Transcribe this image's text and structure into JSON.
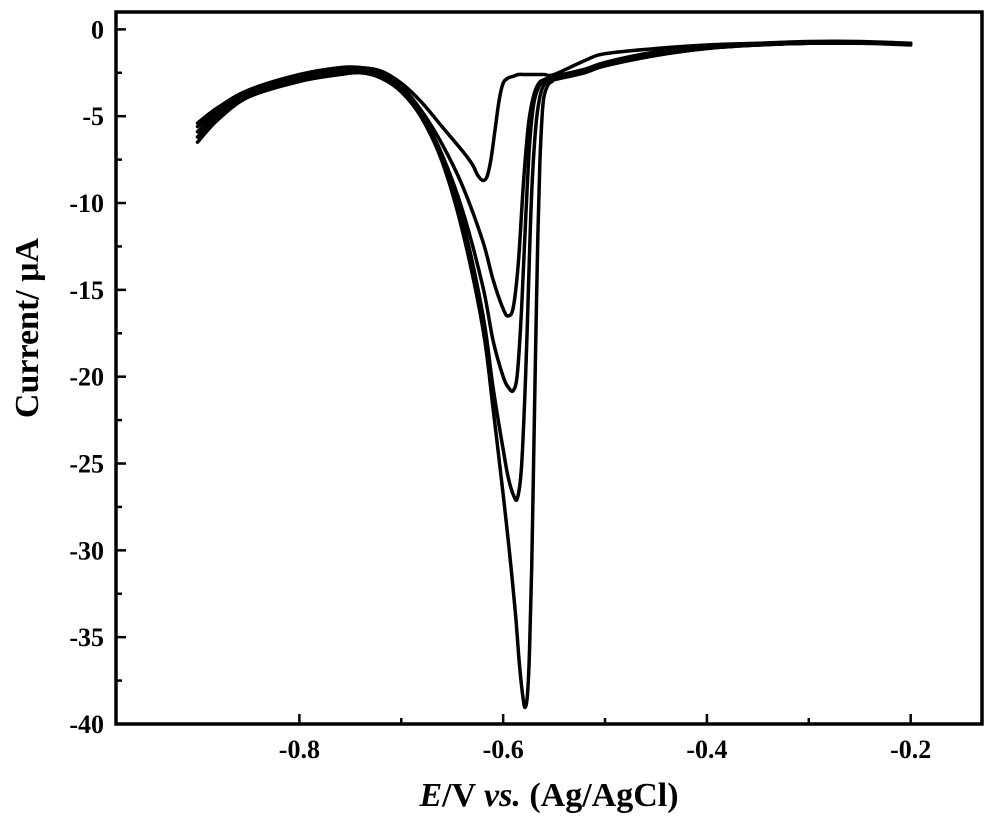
{
  "chart_data": {
    "type": "line",
    "xlabel": "E/V vs. (Ag/AgCl)",
    "xlabel_parts": {
      "e": "E",
      "v": "/V ",
      "vs": "vs.",
      "ref": " (Ag/AgCl)"
    },
    "ylabel": "Current/ μA",
    "xlim": [
      -0.98,
      -0.13
    ],
    "ylim": [
      -40,
      1
    ],
    "xticks": [
      -0.8,
      -0.6,
      -0.4,
      -0.2
    ],
    "xtick_labels": [
      "-0.8",
      "-0.6",
      "-0.4",
      "-0.2"
    ],
    "yticks": [
      0,
      -5,
      -10,
      -15,
      -20,
      -25,
      -30,
      -35,
      -40
    ],
    "ytick_labels": [
      "0",
      "-5",
      "-10",
      "-15",
      "-20",
      "-25",
      "-30",
      "-35",
      "-40"
    ],
    "grid": false,
    "legend": "none",
    "line_color": "#000000",
    "series": [
      {
        "x": [
          -0.9,
          -0.88,
          -0.85,
          -0.8,
          -0.76,
          -0.74,
          -0.72,
          -0.7,
          -0.68,
          -0.66,
          -0.64,
          -0.63,
          -0.625,
          -0.62,
          -0.616,
          -0.612,
          -0.608,
          -0.604,
          -0.6,
          -0.595,
          -0.59,
          -0.585,
          -0.58,
          -0.57,
          -0.56,
          -0.55,
          -0.52,
          -0.5,
          -0.45,
          -0.4,
          -0.35,
          -0.3,
          -0.25,
          -0.2
        ],
        "y": [
          -5.4,
          -4.5,
          -3.5,
          -2.6,
          -2.2,
          -2.2,
          -2.4,
          -3.1,
          -4.2,
          -5.6,
          -7.0,
          -7.8,
          -8.4,
          -8.7,
          -8.5,
          -7.5,
          -5.8,
          -4.1,
          -3.1,
          -2.8,
          -2.7,
          -2.6,
          -2.6,
          -2.6,
          -2.6,
          -2.6,
          -1.8,
          -1.4,
          -1.1,
          -0.9,
          -0.8,
          -0.7,
          -0.7,
          -0.8
        ]
      },
      {
        "x": [
          -0.9,
          -0.88,
          -0.85,
          -0.8,
          -0.76,
          -0.74,
          -0.72,
          -0.7,
          -0.68,
          -0.66,
          -0.64,
          -0.62,
          -0.61,
          -0.6,
          -0.595,
          -0.59,
          -0.585,
          -0.58,
          -0.575,
          -0.57,
          -0.565,
          -0.56,
          -0.555,
          -0.55,
          -0.52,
          -0.5,
          -0.45,
          -0.4,
          -0.35,
          -0.3,
          -0.25,
          -0.2
        ],
        "y": [
          -5.6,
          -4.6,
          -3.6,
          -2.7,
          -2.3,
          -2.2,
          -2.5,
          -3.3,
          -4.7,
          -6.6,
          -9.0,
          -12.2,
          -14.4,
          -16.1,
          -16.5,
          -16.0,
          -13.4,
          -8.8,
          -5.4,
          -3.8,
          -3.1,
          -2.9,
          -2.8,
          -2.7,
          -2.3,
          -1.9,
          -1.3,
          -1.0,
          -0.9,
          -0.8,
          -0.8,
          -0.8
        ]
      },
      {
        "x": [
          -0.9,
          -0.88,
          -0.85,
          -0.8,
          -0.76,
          -0.74,
          -0.72,
          -0.7,
          -0.68,
          -0.66,
          -0.64,
          -0.62,
          -0.61,
          -0.6,
          -0.595,
          -0.59,
          -0.586,
          -0.582,
          -0.578,
          -0.574,
          -0.57,
          -0.565,
          -0.56,
          -0.555,
          -0.55,
          -0.52,
          -0.5,
          -0.45,
          -0.4,
          -0.35,
          -0.3,
          -0.25,
          -0.2
        ],
        "y": [
          -5.9,
          -4.8,
          -3.7,
          -2.8,
          -2.4,
          -2.3,
          -2.6,
          -3.4,
          -4.9,
          -7.2,
          -10.4,
          -14.8,
          -17.9,
          -20.0,
          -20.6,
          -20.8,
          -19.8,
          -16.2,
          -11.0,
          -6.6,
          -4.3,
          -3.3,
          -3.0,
          -2.9,
          -2.8,
          -2.4,
          -2.0,
          -1.4,
          -1.0,
          -0.9,
          -0.8,
          -0.8,
          -0.8
        ]
      },
      {
        "x": [
          -0.9,
          -0.88,
          -0.85,
          -0.8,
          -0.76,
          -0.74,
          -0.72,
          -0.7,
          -0.68,
          -0.66,
          -0.64,
          -0.62,
          -0.61,
          -0.6,
          -0.595,
          -0.59,
          -0.586,
          -0.582,
          -0.578,
          -0.575,
          -0.572,
          -0.568,
          -0.564,
          -0.56,
          -0.555,
          -0.55,
          -0.52,
          -0.5,
          -0.45,
          -0.4,
          -0.35,
          -0.3,
          -0.25,
          -0.2
        ],
        "y": [
          -6.2,
          -5.0,
          -3.8,
          -2.9,
          -2.5,
          -2.4,
          -2.7,
          -3.5,
          -5.0,
          -7.4,
          -11.0,
          -16.4,
          -20.6,
          -24.2,
          -25.8,
          -26.8,
          -27.0,
          -25.2,
          -20.0,
          -14.6,
          -9.4,
          -5.6,
          -3.9,
          -3.2,
          -3.0,
          -2.9,
          -2.5,
          -2.1,
          -1.5,
          -1.1,
          -0.9,
          -0.8,
          -0.8,
          -0.8
        ]
      },
      {
        "x": [
          -0.9,
          -0.88,
          -0.85,
          -0.8,
          -0.76,
          -0.74,
          -0.72,
          -0.7,
          -0.68,
          -0.66,
          -0.64,
          -0.62,
          -0.61,
          -0.6,
          -0.594,
          -0.588,
          -0.584,
          -0.58,
          -0.578,
          -0.576,
          -0.574,
          -0.572,
          -0.57,
          -0.568,
          -0.566,
          -0.564,
          -0.562,
          -0.56,
          -0.556,
          -0.552,
          -0.55,
          -0.53,
          -0.5,
          -0.45,
          -0.4,
          -0.35,
          -0.3,
          -0.25,
          -0.2
        ],
        "y": [
          -6.5,
          -5.2,
          -3.9,
          -3.0,
          -2.6,
          -2.5,
          -2.8,
          -3.6,
          -5.1,
          -7.6,
          -11.6,
          -17.2,
          -21.8,
          -26.8,
          -30.0,
          -33.6,
          -36.6,
          -38.7,
          -39.0,
          -38.2,
          -35.6,
          -31.0,
          -24.6,
          -17.8,
          -12.0,
          -7.8,
          -5.2,
          -3.9,
          -3.2,
          -3.0,
          -2.9,
          -2.6,
          -2.1,
          -1.5,
          -1.1,
          -0.9,
          -0.8,
          -0.8,
          -0.9
        ]
      }
    ]
  }
}
